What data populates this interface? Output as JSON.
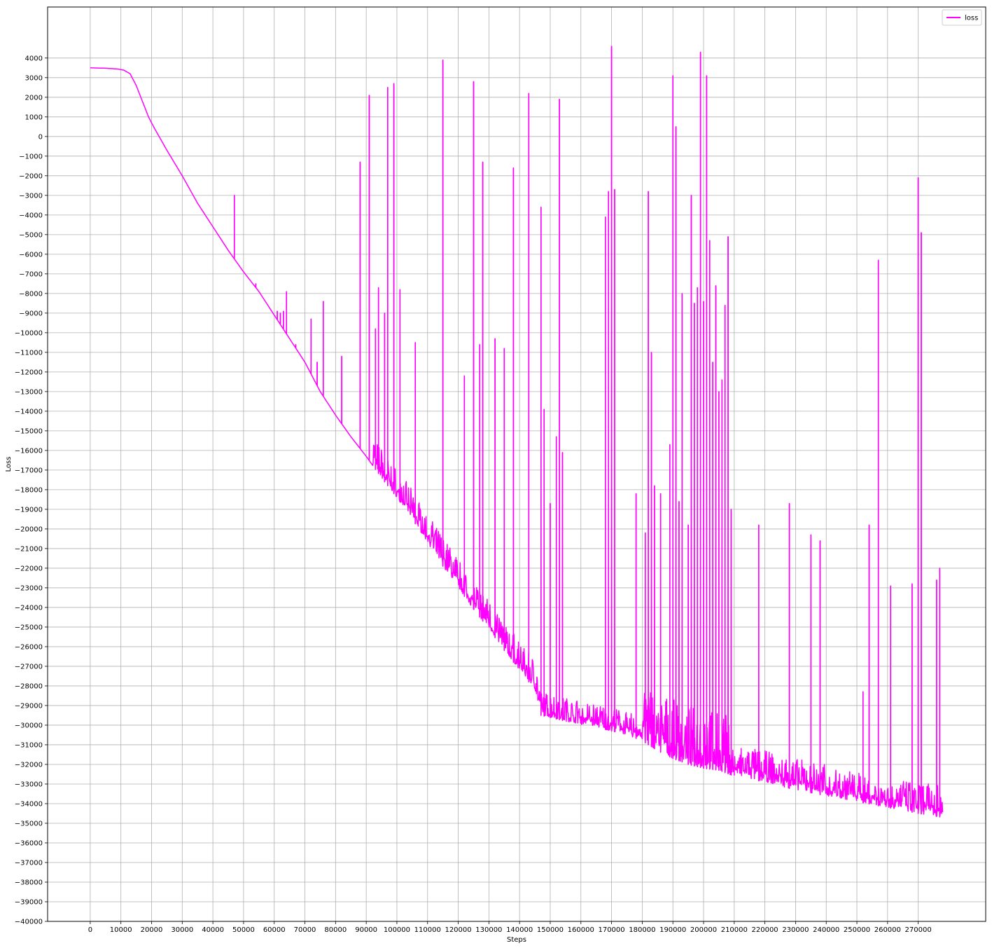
{
  "chart_data": {
    "type": "line",
    "title": "",
    "xlabel": "Steps",
    "ylabel": "Loss",
    "xlim": [
      -13900,
      292000
    ],
    "ylim": [
      -40000,
      6600
    ],
    "x_ticks": [
      0,
      10000,
      20000,
      30000,
      40000,
      50000,
      60000,
      70000,
      80000,
      90000,
      100000,
      110000,
      120000,
      130000,
      140000,
      150000,
      160000,
      170000,
      180000,
      190000,
      200000,
      210000,
      220000,
      230000,
      240000,
      250000,
      260000,
      270000
    ],
    "y_ticks": [
      4000,
      3000,
      2000,
      1000,
      0,
      -1000,
      -2000,
      -3000,
      -4000,
      -5000,
      -6000,
      -7000,
      -8000,
      -9000,
      -10000,
      -11000,
      -12000,
      -13000,
      -14000,
      -15000,
      -16000,
      -17000,
      -18000,
      -19000,
      -20000,
      -21000,
      -22000,
      -23000,
      -24000,
      -25000,
      -26000,
      -27000,
      -28000,
      -29000,
      -30000,
      -31000,
      -32000,
      -33000,
      -34000,
      -35000,
      -36000,
      -37000,
      -38000,
      -39000,
      -40000
    ],
    "grid": true,
    "legend_position": "top-right",
    "series": [
      {
        "name": "loss",
        "color": "#ff00ff",
        "points": [
          [
            0,
            3500
          ],
          [
            5000,
            3480
          ],
          [
            9000,
            3440
          ],
          [
            11000,
            3380
          ],
          [
            13000,
            3200
          ],
          [
            15000,
            2600
          ],
          [
            17000,
            1800
          ],
          [
            19000,
            1000
          ],
          [
            21000,
            400
          ],
          [
            25000,
            -700
          ],
          [
            30000,
            -2000
          ],
          [
            35000,
            -3400
          ],
          [
            40000,
            -4600
          ],
          [
            45000,
            -5800
          ],
          [
            50000,
            -6900
          ],
          [
            55000,
            -7900
          ],
          [
            60000,
            -9100
          ],
          [
            65000,
            -10300
          ],
          [
            70000,
            -11500
          ],
          [
            75000,
            -13000
          ],
          [
            80000,
            -14200
          ],
          [
            85000,
            -15300
          ],
          [
            90000,
            -16300
          ],
          [
            95000,
            -17400
          ],
          [
            100000,
            -18400
          ],
          [
            105000,
            -19500
          ],
          [
            110000,
            -20700
          ],
          [
            115000,
            -21900
          ],
          [
            120000,
            -23000
          ],
          [
            125000,
            -24100
          ],
          [
            130000,
            -25100
          ],
          [
            135000,
            -26200
          ],
          [
            140000,
            -27200
          ],
          [
            145000,
            -28200
          ],
          [
            147000,
            -29500
          ],
          [
            155000,
            -29800
          ],
          [
            165000,
            -30100
          ],
          [
            175000,
            -30500
          ],
          [
            180000,
            -30800
          ],
          [
            185000,
            -31300
          ],
          [
            190000,
            -31700
          ],
          [
            195000,
            -32000
          ],
          [
            200000,
            -32200
          ],
          [
            205000,
            -32300
          ],
          [
            210000,
            -32600
          ],
          [
            220000,
            -32900
          ],
          [
            230000,
            -33300
          ],
          [
            240000,
            -33600
          ],
          [
            250000,
            -33900
          ],
          [
            260000,
            -34200
          ],
          [
            270000,
            -34500
          ],
          [
            278000,
            -34700
          ]
        ],
        "noise_bands": [
          {
            "x_start": 92000,
            "x_end": 147000,
            "amplitude": 1500
          },
          {
            "x_start": 147000,
            "x_end": 180000,
            "amplitude": 1200
          },
          {
            "x_start": 180000,
            "x_end": 209000,
            "amplitude": 3000
          },
          {
            "x_start": 209000,
            "x_end": 278000,
            "amplitude": 1600
          }
        ],
        "spikes": [
          [
            47000,
            -3000
          ],
          [
            54000,
            -7500
          ],
          [
            61000,
            -8900
          ],
          [
            62000,
            -9000
          ],
          [
            63000,
            -8900
          ],
          [
            64000,
            -7900
          ],
          [
            67000,
            -10600
          ],
          [
            72000,
            -9300
          ],
          [
            74000,
            -11500
          ],
          [
            76000,
            -8400
          ],
          [
            82000,
            -11200
          ],
          [
            88000,
            -1300
          ],
          [
            91000,
            2100
          ],
          [
            93000,
            -9800
          ],
          [
            94000,
            -7700
          ],
          [
            96000,
            -9000
          ],
          [
            97000,
            2500
          ],
          [
            99000,
            2700
          ],
          [
            101000,
            -7800
          ],
          [
            106000,
            -10500
          ],
          [
            115000,
            3900
          ],
          [
            122000,
            -12200
          ],
          [
            125000,
            2800
          ],
          [
            127000,
            -10600
          ],
          [
            128000,
            -1300
          ],
          [
            132000,
            -10300
          ],
          [
            135000,
            -10800
          ],
          [
            138000,
            -1600
          ],
          [
            143000,
            2200
          ],
          [
            147000,
            -3600
          ],
          [
            148000,
            -13900
          ],
          [
            150000,
            -18700
          ],
          [
            152000,
            -15300
          ],
          [
            153000,
            1900
          ],
          [
            154000,
            -16100
          ],
          [
            168000,
            -4100
          ],
          [
            169000,
            -2800
          ],
          [
            170000,
            4600
          ],
          [
            171000,
            -2700
          ],
          [
            178000,
            -18200
          ],
          [
            181000,
            -20200
          ],
          [
            182000,
            -2800
          ],
          [
            183000,
            -11000
          ],
          [
            184000,
            -17800
          ],
          [
            186000,
            -18200
          ],
          [
            189000,
            -15700
          ],
          [
            190000,
            3100
          ],
          [
            191000,
            500
          ],
          [
            192000,
            -18600
          ],
          [
            193000,
            -8000
          ],
          [
            195000,
            -19800
          ],
          [
            196000,
            -3000
          ],
          [
            197000,
            -8500
          ],
          [
            198000,
            -7700
          ],
          [
            199000,
            4300
          ],
          [
            200000,
            -8400
          ],
          [
            201000,
            3100
          ],
          [
            202000,
            -5300
          ],
          [
            203000,
            -11500
          ],
          [
            204000,
            -7600
          ],
          [
            205000,
            -13000
          ],
          [
            206000,
            -12400
          ],
          [
            207000,
            -8600
          ],
          [
            208000,
            -5100
          ],
          [
            209000,
            -19000
          ],
          [
            218000,
            -19800
          ],
          [
            228000,
            -18700
          ],
          [
            235000,
            -20300
          ],
          [
            238000,
            -20600
          ],
          [
            252000,
            -28300
          ],
          [
            254000,
            -19800
          ],
          [
            257000,
            -6300
          ],
          [
            261000,
            -22900
          ],
          [
            268000,
            -22800
          ],
          [
            270000,
            -2100
          ],
          [
            271000,
            -4900
          ],
          [
            276000,
            -22600
          ],
          [
            277000,
            -22000
          ]
        ]
      }
    ]
  }
}
